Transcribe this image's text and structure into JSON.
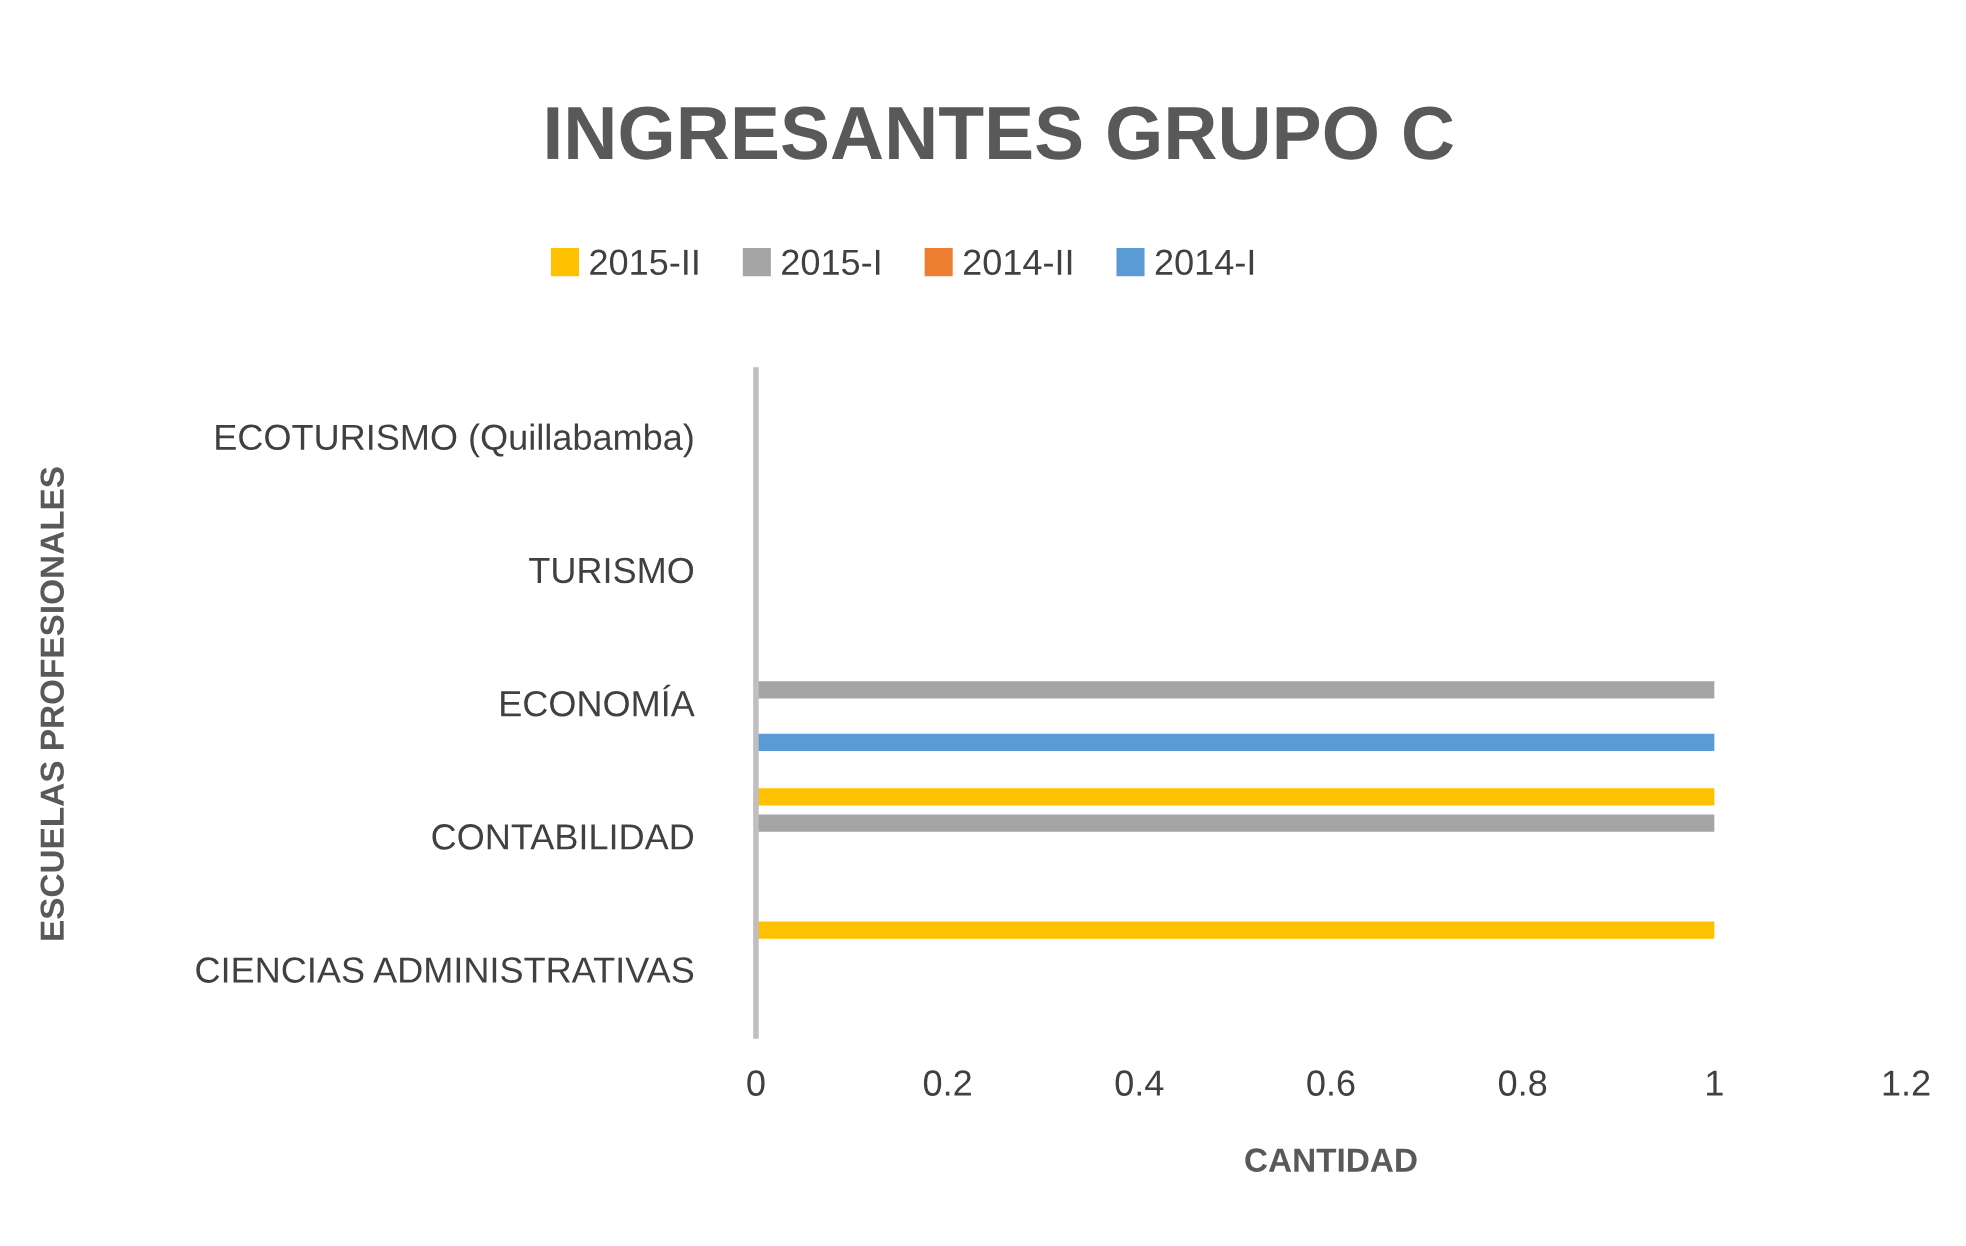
{
  "chart_data": {
    "type": "bar",
    "orientation": "horizontal",
    "title": "INGRESANTES GRUPO C",
    "xlabel": "CANTIDAD",
    "ylabel": "ESCUELAS PROFESIONALES",
    "categories": [
      "ECOTURISMO (Quillabamba)",
      "TURISMO",
      "ECONOMÍA",
      "CONTABILIDAD",
      "CIENCIAS ADMINISTRATIVAS"
    ],
    "series": [
      {
        "name": "2015-II",
        "color": "#ffc000",
        "values": [
          null,
          null,
          null,
          1,
          1
        ]
      },
      {
        "name": "2015-I",
        "color": "#a5a5a5",
        "values": [
          null,
          null,
          1,
          1,
          null
        ]
      },
      {
        "name": "2014-II",
        "color": "#ed7d31",
        "values": [
          null,
          null,
          null,
          null,
          null
        ]
      },
      {
        "name": "2014-I",
        "color": "#5b9bd5",
        "values": [
          null,
          null,
          1,
          null,
          null
        ]
      }
    ],
    "xlim": [
      0,
      1.2
    ],
    "xticks": [
      0,
      0.2,
      0.4,
      0.6,
      0.8,
      1,
      1.2
    ],
    "grid": false,
    "legend": "top"
  }
}
